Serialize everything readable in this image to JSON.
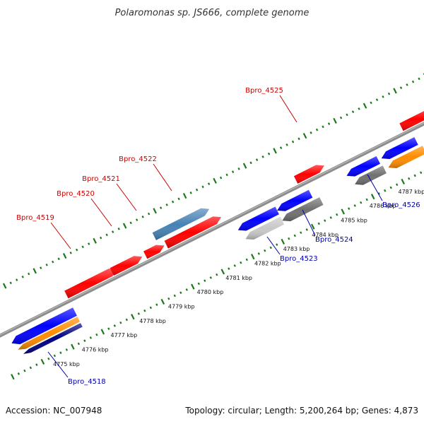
{
  "title": "Polaromonas sp. JS666, complete genome",
  "footer": {
    "accession": "Accession: NC_007948",
    "summary": "Topology: circular; Length: 5,200,264 bp; Genes: 4,873"
  },
  "colors": {
    "red": "#ff0000",
    "blue": "#0000ff",
    "steelblue": "#4682b4",
    "orange": "#ff8c00",
    "navy": "#000080",
    "gray": "#707070",
    "lightgray": "#c8c8c8",
    "backbone": "#8c8c8c",
    "tick": "#1a7a1a",
    "label_fwd": "#cc0000",
    "label_rev": "#0000aa"
  },
  "ticks": [
    "4775 kbp",
    "4776 kbp",
    "4777 kbp",
    "4778 kbp",
    "4779 kbp",
    "4780 kbp",
    "4781 kbp",
    "4782 kbp",
    "4783 kbp",
    "4784 kbp",
    "4785 kbp",
    "4786 kbp",
    "4787 kbp"
  ],
  "genes_top": [
    {
      "label": "Bpro_4519"
    },
    {
      "label": "Bpro_4520"
    },
    {
      "label": "Bpro_4521"
    },
    {
      "label": "Bpro_4522"
    },
    {
      "label": "Bpro_4525"
    }
  ],
  "genes_bottom": [
    {
      "label": "Bpro_4518"
    },
    {
      "label": "Bpro_4523"
    },
    {
      "label": "Bpro_4524"
    },
    {
      "label": "Bpro_4526"
    }
  ]
}
